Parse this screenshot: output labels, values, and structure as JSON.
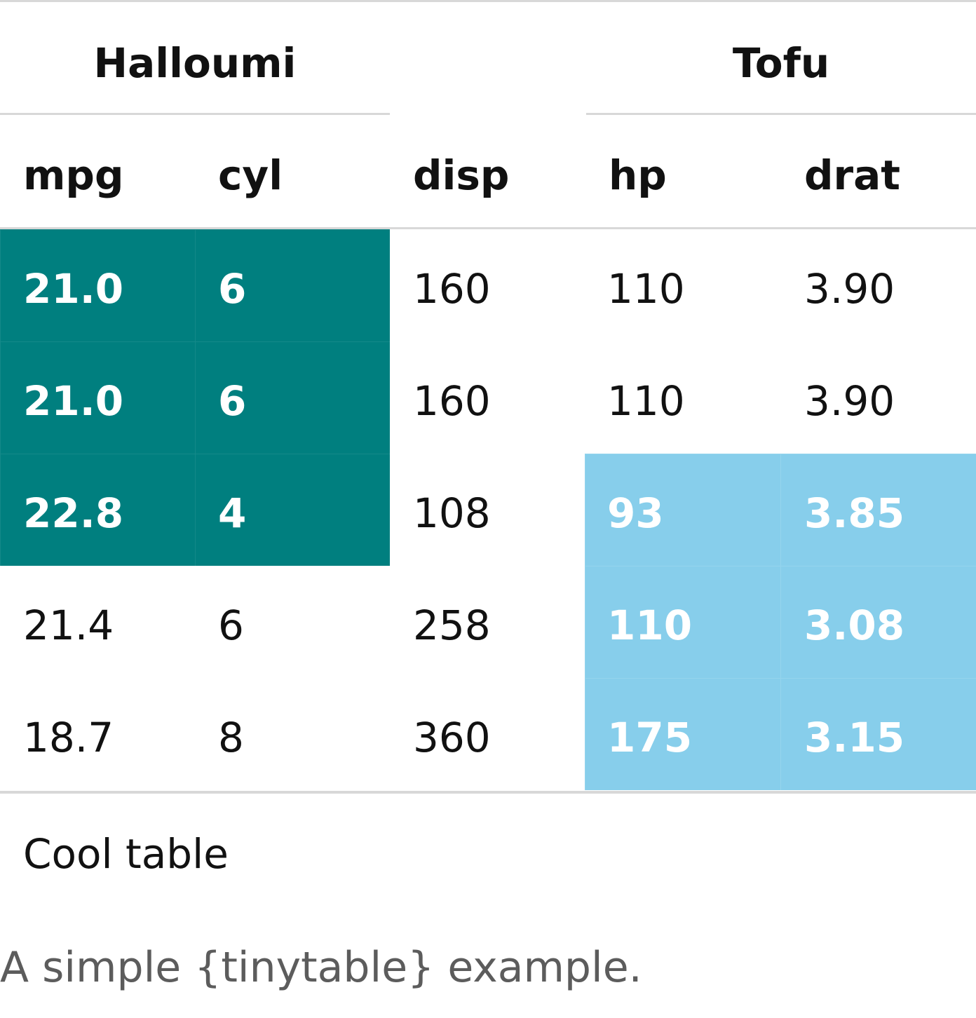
{
  "table": {
    "group_headers": [
      "Halloumi",
      "Tofu"
    ],
    "columns": [
      "mpg",
      "cyl",
      "disp",
      "hp",
      "drat"
    ],
    "rows": [
      [
        "21.0",
        "6",
        "160",
        "110",
        "3.90"
      ],
      [
        "21.0",
        "6",
        "160",
        "110",
        "3.90"
      ],
      [
        "22.8",
        "4",
        "108",
        "93",
        "3.85"
      ],
      [
        "21.4",
        "6",
        "258",
        "110",
        "3.08"
      ],
      [
        "18.7",
        "8",
        "360",
        "175",
        "3.15"
      ]
    ],
    "highlight_colors": {
      "teal": "#007f7f",
      "sky": "#87ceeb"
    },
    "footnote": "Cool table"
  },
  "caption": "A simple {tinytable} example."
}
